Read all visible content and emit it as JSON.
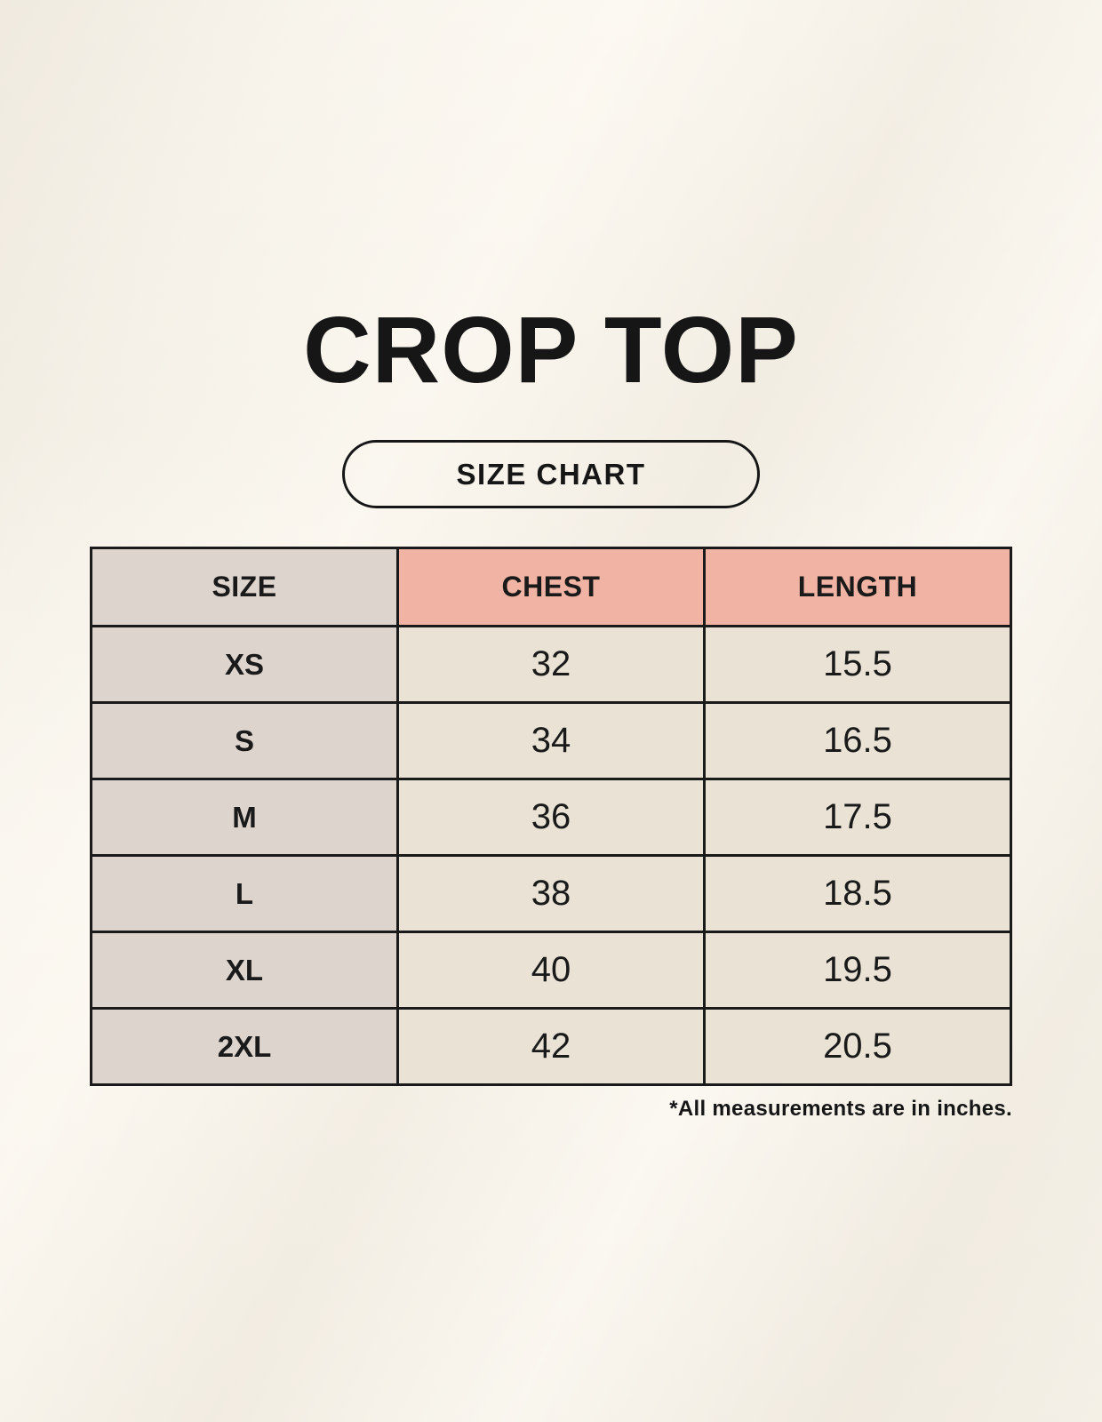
{
  "page": {
    "title": "CROP TOP",
    "size_chart_label": "SIZE CHART",
    "footnote": "*All measurements are in inches."
  },
  "colors": {
    "background": "#f6f2e9",
    "table_border": "#1a1a1a",
    "size_column_bg": "#ddd4ce",
    "header_accent_bg": "#f0b3a4",
    "value_cell_bg": "#e9e2d5",
    "text": "#1a1a1a"
  },
  "chart_data": {
    "type": "table",
    "title": "CROP TOP",
    "columns": [
      "SIZE",
      "CHEST",
      "LENGTH"
    ],
    "rows": [
      [
        "XS",
        "32",
        "15.5"
      ],
      [
        "S",
        "34",
        "16.5"
      ],
      [
        "M",
        "36",
        "17.5"
      ],
      [
        "L",
        "38",
        "18.5"
      ],
      [
        "XL",
        "40",
        "19.5"
      ],
      [
        "2XL",
        "42",
        "20.5"
      ]
    ],
    "units": "inches",
    "footnote": "*All measurements are in inches."
  }
}
